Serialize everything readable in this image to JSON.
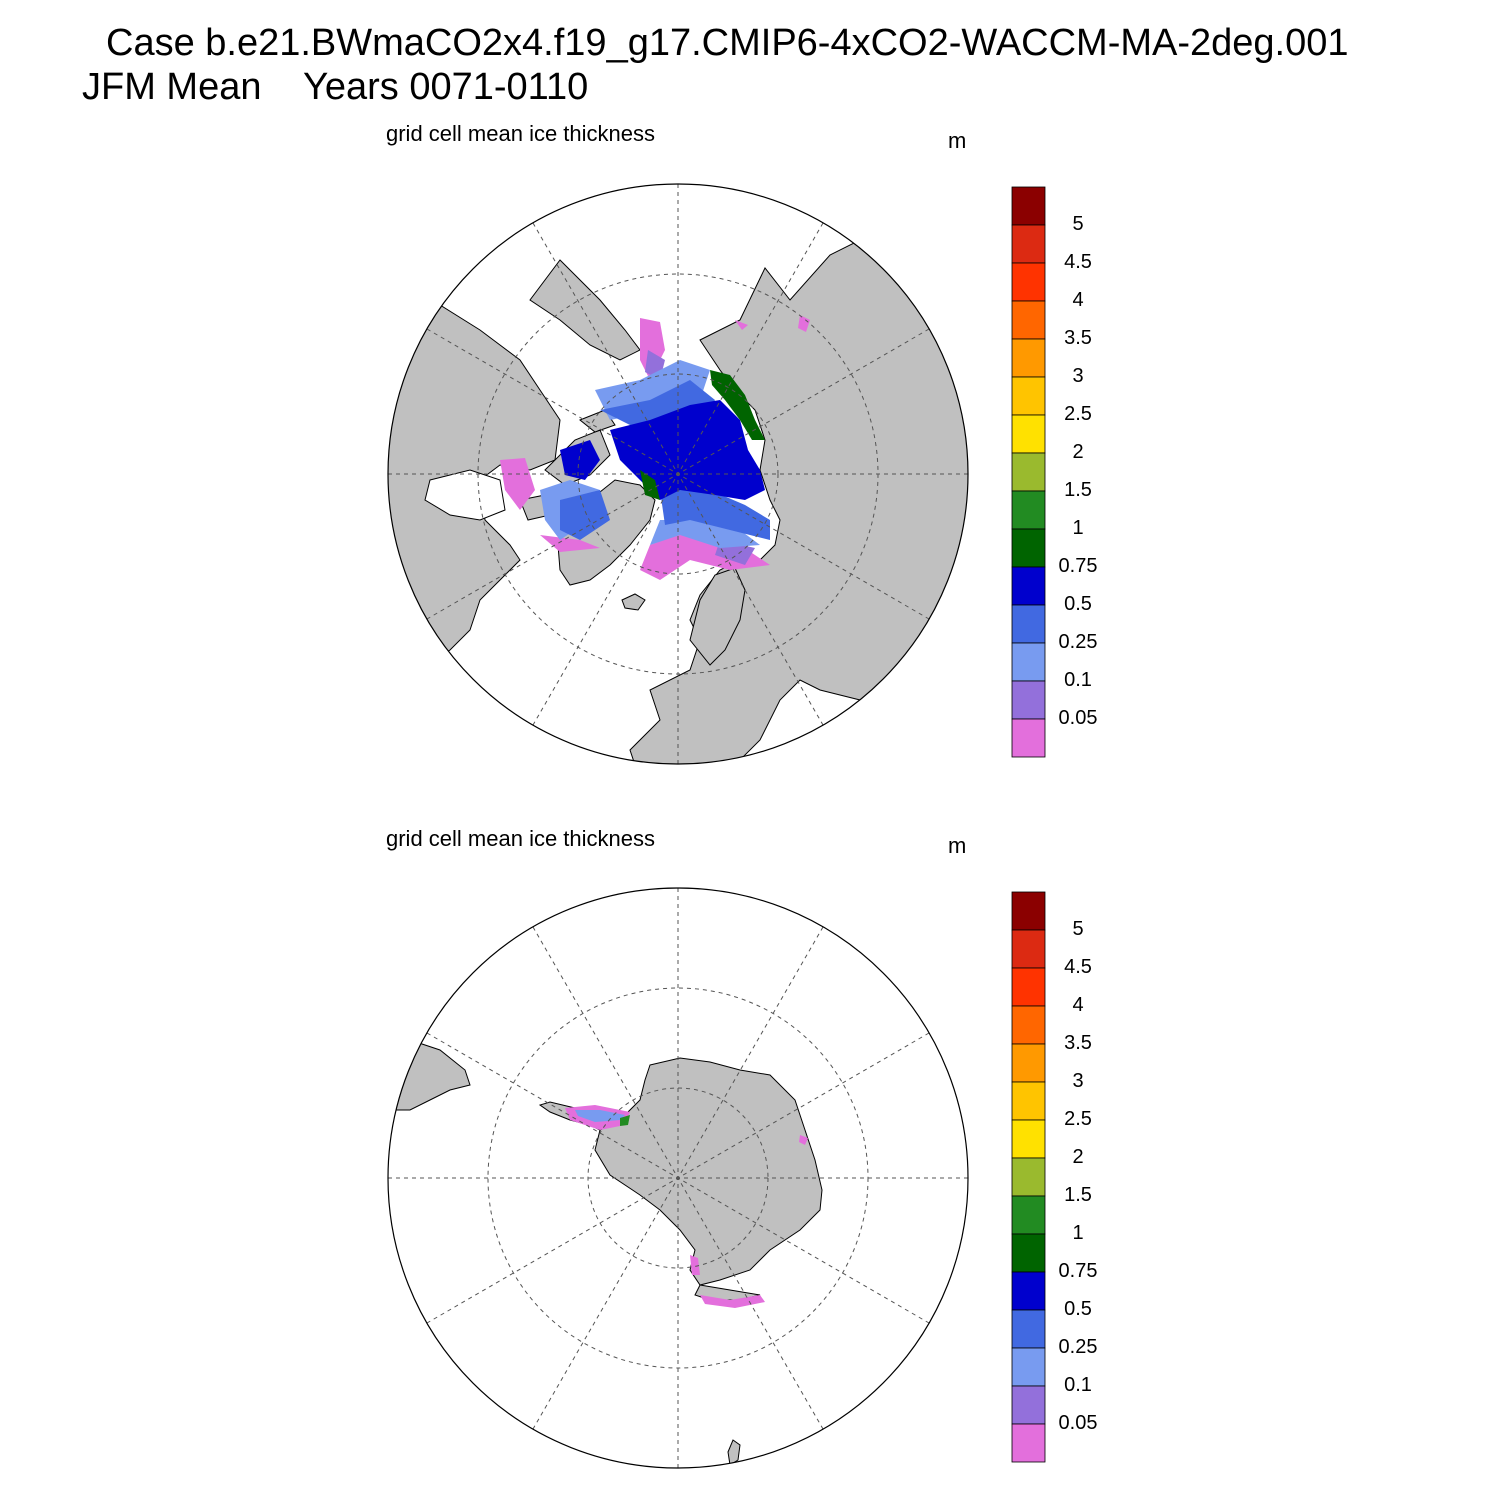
{
  "header": {
    "line1": "Case b.e21.BWmaCO2x4.f19_g17.CMIP6-4xCO2-WACCM-MA-2deg.001",
    "line2": "JFM Mean    Years 0071-0110"
  },
  "panels": [
    {
      "title": "grid cell mean ice thickness",
      "unit": "m",
      "hemisphere": "north"
    },
    {
      "title": "grid cell mean ice thickness",
      "unit": "m",
      "hemisphere": "south"
    }
  ],
  "colorbar": {
    "labels": [
      "5",
      "4.5",
      "4",
      "3.5",
      "3",
      "2.5",
      "2",
      "1.5",
      "1",
      "0.75",
      "0.5",
      "0.25",
      "0.1",
      "0.05"
    ],
    "colors": [
      "#8b0000",
      "#dc2a12",
      "#ff3300",
      "#ff6600",
      "#ff9900",
      "#ffc400",
      "#ffe100",
      "#9aba2e",
      "#228b22",
      "#006400",
      "#0000cd",
      "#4169e1",
      "#789bf0",
      "#9370db",
      "#e36fdc"
    ]
  },
  "colors": {
    "land": "#c0c0c0",
    "ocean": "#ffffff"
  }
}
